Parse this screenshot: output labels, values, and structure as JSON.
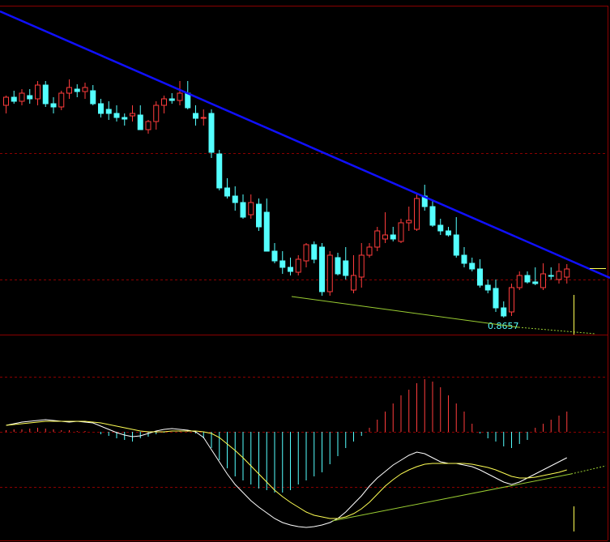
{
  "chart_data": [
    {
      "type": "candlestick",
      "up_color": "#ff3c3c",
      "down_color": "#54ffff",
      "ylim": [
        0.8636,
        0.9042
      ],
      "open": [
        0.8919,
        0.8929,
        0.8924,
        0.8931,
        0.8927,
        0.8944,
        0.8921,
        0.8917,
        0.8934,
        0.8939,
        0.8936,
        0.8937,
        0.8921,
        0.8914,
        0.8909,
        0.8904,
        0.8906,
        0.8907,
        0.8889,
        0.8899,
        0.8919,
        0.8927,
        0.8925,
        0.8934,
        0.8909,
        0.8903,
        0.8909,
        0.8859,
        0.8817,
        0.8807,
        0.8799,
        0.8784,
        0.8797,
        0.8787,
        0.8739,
        0.8727,
        0.8719,
        0.8713,
        0.8727,
        0.8747,
        0.8744,
        0.8689,
        0.8731,
        0.8727,
        0.8691,
        0.8707,
        0.8734,
        0.8744,
        0.8754,
        0.8759,
        0.8751,
        0.8774,
        0.8766,
        0.8807,
        0.8794,
        0.8771,
        0.8764,
        0.8759,
        0.8734,
        0.8724,
        0.8717,
        0.8697,
        0.8693,
        0.8669,
        0.8664,
        0.8694,
        0.8709,
        0.8701,
        0.8694,
        0.8709,
        0.8704,
        0.8707
      ],
      "high": [
        0.8931,
        0.8937,
        0.8939,
        0.8939,
        0.8949,
        0.8949,
        0.8929,
        0.8937,
        0.8951,
        0.8945,
        0.8947,
        0.8944,
        0.8927,
        0.8924,
        0.8919,
        0.8909,
        0.8919,
        0.8919,
        0.8901,
        0.8924,
        0.8931,
        0.8934,
        0.8949,
        0.8949,
        0.8919,
        0.8914,
        0.8914,
        0.8864,
        0.8829,
        0.8819,
        0.8809,
        0.8809,
        0.8804,
        0.8804,
        0.8749,
        0.8739,
        0.8731,
        0.8734,
        0.8749,
        0.8751,
        0.8749,
        0.8739,
        0.8737,
        0.8744,
        0.8734,
        0.8749,
        0.8749,
        0.8769,
        0.8787,
        0.8769,
        0.8779,
        0.8794,
        0.8809,
        0.8821,
        0.8801,
        0.8779,
        0.8769,
        0.8781,
        0.8744,
        0.8731,
        0.8729,
        0.8704,
        0.8704,
        0.8677,
        0.8699,
        0.8714,
        0.8714,
        0.8719,
        0.8724,
        0.8719,
        0.8724,
        0.8723
      ],
      "low": [
        0.8909,
        0.8921,
        0.8919,
        0.8921,
        0.8919,
        0.8917,
        0.8909,
        0.8913,
        0.8927,
        0.8929,
        0.8927,
        0.8919,
        0.8904,
        0.8901,
        0.8899,
        0.8894,
        0.8899,
        0.8889,
        0.8884,
        0.8889,
        0.8909,
        0.8921,
        0.8919,
        0.8914,
        0.8894,
        0.8894,
        0.8854,
        0.8814,
        0.8804,
        0.8789,
        0.8779,
        0.8779,
        0.8764,
        0.8739,
        0.8724,
        0.8711,
        0.8709,
        0.8709,
        0.8719,
        0.8724,
        0.8684,
        0.8684,
        0.8709,
        0.8704,
        0.8687,
        0.8694,
        0.8731,
        0.8739,
        0.8749,
        0.8751,
        0.8749,
        0.8764,
        0.8764,
        0.8789,
        0.8769,
        0.8759,
        0.8757,
        0.8731,
        0.8719,
        0.8714,
        0.8694,
        0.8687,
        0.8664,
        0.8657,
        0.8659,
        0.8691,
        0.8699,
        0.8697,
        0.8691,
        0.8704,
        0.8699,
        0.8699
      ],
      "close": [
        0.8929,
        0.8924,
        0.8934,
        0.8927,
        0.8944,
        0.8921,
        0.8917,
        0.8934,
        0.8941,
        0.8936,
        0.8941,
        0.8921,
        0.8909,
        0.8909,
        0.8904,
        0.8902,
        0.8909,
        0.8889,
        0.8899,
        0.8919,
        0.8927,
        0.8925,
        0.8934,
        0.8916,
        0.8903,
        0.8904,
        0.8861,
        0.8817,
        0.8807,
        0.8799,
        0.8781,
        0.8799,
        0.8769,
        0.8739,
        0.8727,
        0.8719,
        0.8714,
        0.8729,
        0.8747,
        0.8729,
        0.8689,
        0.8734,
        0.8711,
        0.8709,
        0.8709,
        0.8734,
        0.8744,
        0.8764,
        0.8759,
        0.8754,
        0.8774,
        0.8777,
        0.8804,
        0.8794,
        0.8771,
        0.8764,
        0.8759,
        0.8734,
        0.8724,
        0.8717,
        0.8697,
        0.8691,
        0.8669,
        0.8659,
        0.8694,
        0.8709,
        0.8701,
        0.8699,
        0.8711,
        0.8708,
        0.8714,
        0.8717
      ],
      "annotation": "0.8657"
    },
    {
      "type": "macd",
      "ylim": [
        -0.00136,
        0.0012
      ],
      "bars": {
        "up_color": "#ff3c3c",
        "down_color": "#54ffff",
        "values": [
          2e-05,
          3e-05,
          3e-05,
          4e-05,
          5e-05,
          4e-05,
          3e-05,
          2e-05,
          2e-05,
          1e-05,
          1e-05,
          0,
          -3e-05,
          -5e-05,
          -8e-05,
          -0.0001,
          -0.00012,
          -8e-05,
          -6e-05,
          -3e-05,
          -1e-05,
          0,
          1e-05,
          2e-05,
          -2e-05,
          -8e-05,
          -0.0002,
          -0.00035,
          -0.00045,
          -0.00055,
          -0.0006,
          -0.00065,
          -0.0007,
          -0.00072,
          -0.00075,
          -0.00075,
          -0.00072,
          -0.00065,
          -0.0006,
          -0.00055,
          -0.0005,
          -0.0004,
          -0.0003,
          -0.0002,
          -0.00012,
          -5e-05,
          5e-05,
          0.00015,
          0.00025,
          0.00035,
          0.00045,
          0.00052,
          0.0006,
          0.00065,
          0.00062,
          0.00055,
          0.00045,
          0.00035,
          0.00025,
          0.0001,
          -2e-05,
          -8e-05,
          -0.00012,
          -0.00018,
          -0.0002,
          -0.00015,
          -0.0001,
          5e-05,
          0.0001,
          0.00015,
          0.0002,
          0.00025
        ]
      },
      "series": [
        {
          "color": "#ffffff",
          "values": [
            8e-05,
            0.0001,
            0.00012,
            0.00013,
            0.00014,
            0.00015,
            0.00014,
            0.00013,
            0.00012,
            0.00013,
            0.00012,
            0.00011,
            7e-05,
            3e-05,
            -1e-05,
            -4e-05,
            -6e-05,
            -5e-05,
            -2e-05,
            1e-05,
            3e-05,
            4e-05,
            3e-05,
            2e-05,
            0,
            -7e-05,
            -0.00022,
            -0.00037,
            -0.00052,
            -0.00065,
            -0.00075,
            -0.00085,
            -0.00093,
            -0.001,
            -0.00107,
            -0.00112,
            -0.00115,
            -0.00117,
            -0.00118,
            -0.00117,
            -0.00115,
            -0.00112,
            -0.00107,
            -0.00099,
            -0.00089,
            -0.00079,
            -0.00067,
            -0.00057,
            -0.00049,
            -0.00041,
            -0.00035,
            -0.00029,
            -0.00025,
            -0.00027,
            -0.00032,
            -0.00037,
            -0.00039,
            -0.00039,
            -0.00041,
            -0.00043,
            -0.00047,
            -0.00052,
            -0.00057,
            -0.00062,
            -0.00065,
            -0.00062,
            -0.00057,
            -0.00052,
            -0.00047,
            -0.00042,
            -0.00037,
            -0.00032
          ]
        },
        {
          "color": "#ffff54",
          "values": [
            8e-05,
            9e-05,
            0.0001,
            0.00011,
            0.00012,
            0.00013,
            0.00013,
            0.00013,
            0.00013,
            0.00013,
            0.00013,
            0.00012,
            0.00011,
            9e-05,
            7e-05,
            5e-05,
            3e-05,
            1e-05,
            0,
            0,
            0,
            1e-05,
            1e-05,
            1e-05,
            1e-05,
            0,
            -2e-05,
            -7e-05,
            -0.00015,
            -0.00023,
            -0.00032,
            -0.00042,
            -0.00052,
            -0.00062,
            -0.00072,
            -0.0008,
            -0.00087,
            -0.00093,
            -0.00099,
            -0.00103,
            -0.00105,
            -0.00107,
            -0.00107,
            -0.00105,
            -0.00101,
            -0.00095,
            -0.00087,
            -0.00077,
            -0.00067,
            -0.00059,
            -0.00052,
            -0.00047,
            -0.00043,
            -0.0004,
            -0.00039,
            -0.00039,
            -0.00039,
            -0.00039,
            -0.00039,
            -0.0004,
            -0.00042,
            -0.00044,
            -0.00047,
            -0.00051,
            -0.00055,
            -0.00057,
            -0.00057,
            -0.00056,
            -0.00054,
            -0.00052,
            -0.0005,
            -0.00047
          ]
        }
      ]
    }
  ]
}
